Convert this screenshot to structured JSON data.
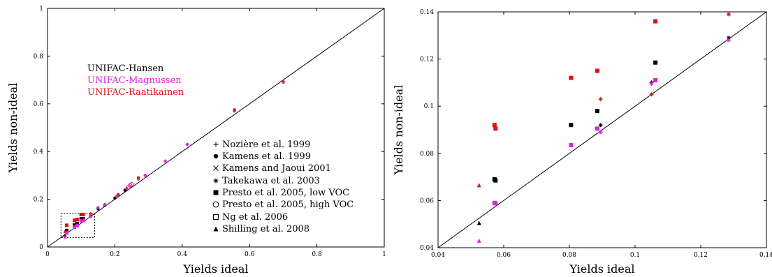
{
  "colors": {
    "hansen": "#000000",
    "magnussen": "#e020e0",
    "raatikainen": "#e01010"
  },
  "chart_data": [
    {
      "type": "scatter",
      "xlabel": "Yields ideal",
      "ylabel": "Yields non-ideal",
      "xlim": [
        0,
        1
      ],
      "ylim": [
        0,
        1
      ],
      "xticks": [
        "0",
        "0.2",
        "0.4",
        "0.6",
        "0.8",
        "1"
      ],
      "yticks": [
        "0",
        "0.2",
        "0.4",
        "0.6",
        "0.8",
        "1"
      ],
      "reference_line": "y = x",
      "zoom_box": {
        "x": [
          0.04,
          0.14
        ],
        "y": [
          0.04,
          0.14
        ]
      },
      "color_legend": [
        {
          "label": "UNIFAC-Hansen",
          "color": "#000000"
        },
        {
          "label": "UNIFAC-Magnussen",
          "color": "#e020e0"
        },
        {
          "label": "UNIFAC-Raatikainen",
          "color": "#e01010"
        }
      ],
      "marker_legend": [
        {
          "label": "Nozière et al. 1999",
          "marker": "plus"
        },
        {
          "label": "Kamens et al. 1999",
          "marker": "dot"
        },
        {
          "label": "Kamens and Jaoui 2001",
          "marker": "cross"
        },
        {
          "label": "Takekawa et al. 2003",
          "marker": "star"
        },
        {
          "label": "Presto et al. 2005, low VOC",
          "marker": "square"
        },
        {
          "label": "Presto et al. 2005, high VOC",
          "marker": "circle"
        },
        {
          "label": "Ng et al. 2006",
          "marker": "open-square"
        },
        {
          "label": "Shilling et al. 2008",
          "marker": "triangle"
        }
      ],
      "points": [
        {
          "x": 0.052,
          "y": 0.05,
          "model": "hansen",
          "marker": "triangle"
        },
        {
          "x": 0.052,
          "y": 0.066,
          "model": "raatikainen",
          "marker": "triangle"
        },
        {
          "x": 0.052,
          "y": 0.043,
          "model": "magnussen",
          "marker": "triangle"
        },
        {
          "x": 0.057,
          "y": 0.069,
          "model": "hansen",
          "marker": "square"
        },
        {
          "x": 0.057,
          "y": 0.091,
          "model": "raatikainen",
          "marker": "square"
        },
        {
          "x": 0.057,
          "y": 0.059,
          "model": "magnussen",
          "marker": "square"
        },
        {
          "x": 0.08,
          "y": 0.092,
          "model": "hansen",
          "marker": "square"
        },
        {
          "x": 0.08,
          "y": 0.112,
          "model": "raatikainen",
          "marker": "square"
        },
        {
          "x": 0.08,
          "y": 0.083,
          "model": "magnussen",
          "marker": "square"
        },
        {
          "x": 0.088,
          "y": 0.098,
          "model": "hansen",
          "marker": "square"
        },
        {
          "x": 0.088,
          "y": 0.115,
          "model": "raatikainen",
          "marker": "square"
        },
        {
          "x": 0.088,
          "y": 0.09,
          "model": "magnussen",
          "marker": "square"
        },
        {
          "x": 0.106,
          "y": 0.118,
          "model": "hansen",
          "marker": "square"
        },
        {
          "x": 0.106,
          "y": 0.136,
          "model": "raatikainen",
          "marker": "square"
        },
        {
          "x": 0.106,
          "y": 0.111,
          "model": "magnussen",
          "marker": "square"
        },
        {
          "x": 0.128,
          "y": 0.129,
          "model": "hansen",
          "marker": "star"
        },
        {
          "x": 0.128,
          "y": 0.139,
          "model": "raatikainen",
          "marker": "star"
        },
        {
          "x": 0.128,
          "y": 0.128,
          "model": "magnussen",
          "marker": "star"
        },
        {
          "x": 0.1,
          "y": 0.118,
          "model": "hansen",
          "marker": "square"
        },
        {
          "x": 0.1,
          "y": 0.136,
          "model": "raatikainen",
          "marker": "square"
        },
        {
          "x": 0.1,
          "y": 0.11,
          "model": "magnussen",
          "marker": "square"
        },
        {
          "x": 0.15,
          "y": 0.16,
          "model": "hansen",
          "marker": "dot"
        },
        {
          "x": 0.15,
          "y": 0.165,
          "model": "magnussen",
          "marker": "dot"
        },
        {
          "x": 0.17,
          "y": 0.175,
          "model": "hansen",
          "marker": "dot"
        },
        {
          "x": 0.17,
          "y": 0.178,
          "model": "magnussen",
          "marker": "dot"
        },
        {
          "x": 0.2,
          "y": 0.205,
          "model": "hansen",
          "marker": "dot"
        },
        {
          "x": 0.205,
          "y": 0.212,
          "model": "magnussen",
          "marker": "dot"
        },
        {
          "x": 0.21,
          "y": 0.22,
          "model": "raatikainen",
          "marker": "dot"
        },
        {
          "x": 0.23,
          "y": 0.238,
          "model": "hansen",
          "marker": "dot"
        },
        {
          "x": 0.235,
          "y": 0.245,
          "model": "magnussen",
          "marker": "dot"
        },
        {
          "x": 0.24,
          "y": 0.25,
          "model": "raatikainen",
          "marker": "circle"
        },
        {
          "x": 0.245,
          "y": 0.258,
          "model": "magnussen",
          "marker": "circle"
        },
        {
          "x": 0.25,
          "y": 0.262,
          "model": "raatikainen",
          "marker": "circle"
        },
        {
          "x": 0.27,
          "y": 0.285,
          "model": "magnussen",
          "marker": "dot"
        },
        {
          "x": 0.27,
          "y": 0.29,
          "model": "raatikainen",
          "marker": "dot"
        },
        {
          "x": 0.29,
          "y": 0.3,
          "model": "magnussen",
          "marker": "dot"
        },
        {
          "x": 0.35,
          "y": 0.36,
          "model": "magnussen",
          "marker": "star"
        },
        {
          "x": 0.415,
          "y": 0.43,
          "model": "magnussen",
          "marker": "dot"
        },
        {
          "x": 0.555,
          "y": 0.57,
          "model": "magnussen",
          "marker": "dot"
        },
        {
          "x": 0.555,
          "y": 0.575,
          "model": "raatikainen",
          "marker": "dot"
        },
        {
          "x": 0.7,
          "y": 0.69,
          "model": "magnussen",
          "marker": "star"
        },
        {
          "x": 0.7,
          "y": 0.695,
          "model": "raatikainen",
          "marker": "plus"
        }
      ]
    },
    {
      "type": "scatter",
      "xlabel": "Yields ideal",
      "ylabel": "Yields non-ideal",
      "xlim": [
        0.04,
        0.14
      ],
      "ylim": [
        0.04,
        0.14
      ],
      "xticks": [
        "0.04",
        "0.06",
        "0.08",
        "0.1",
        "0.12",
        "0.14"
      ],
      "yticks": [
        "0.04",
        "0.06",
        "0.08",
        "0.1",
        "0.12",
        "0.14"
      ],
      "reference_line": "y = x",
      "points": [
        {
          "x": 0.0525,
          "y": 0.0505,
          "model": "hansen",
          "marker": "triangle"
        },
        {
          "x": 0.0525,
          "y": 0.0665,
          "model": "raatikainen",
          "marker": "triangle"
        },
        {
          "x": 0.0525,
          "y": 0.043,
          "model": "magnussen",
          "marker": "triangle"
        },
        {
          "x": 0.0572,
          "y": 0.069,
          "model": "hansen",
          "marker": "square"
        },
        {
          "x": 0.0575,
          "y": 0.0685,
          "model": "hansen",
          "marker": "square"
        },
        {
          "x": 0.0572,
          "y": 0.092,
          "model": "raatikainen",
          "marker": "square"
        },
        {
          "x": 0.0575,
          "y": 0.0905,
          "model": "raatikainen",
          "marker": "square"
        },
        {
          "x": 0.0572,
          "y": 0.059,
          "model": "magnussen",
          "marker": "square"
        },
        {
          "x": 0.0575,
          "y": 0.0588,
          "model": "magnussen",
          "marker": "square"
        },
        {
          "x": 0.0805,
          "y": 0.092,
          "model": "hansen",
          "marker": "square"
        },
        {
          "x": 0.0805,
          "y": 0.112,
          "model": "raatikainen",
          "marker": "square"
        },
        {
          "x": 0.0805,
          "y": 0.0835,
          "model": "magnussen",
          "marker": "square"
        },
        {
          "x": 0.0885,
          "y": 0.098,
          "model": "hansen",
          "marker": "square"
        },
        {
          "x": 0.0885,
          "y": 0.115,
          "model": "raatikainen",
          "marker": "square"
        },
        {
          "x": 0.0885,
          "y": 0.0905,
          "model": "magnussen",
          "marker": "square"
        },
        {
          "x": 0.0895,
          "y": 0.092,
          "model": "hansen",
          "marker": "star"
        },
        {
          "x": 0.0895,
          "y": 0.103,
          "model": "raatikainen",
          "marker": "star"
        },
        {
          "x": 0.0895,
          "y": 0.089,
          "model": "magnussen",
          "marker": "star"
        },
        {
          "x": 0.105,
          "y": 0.11,
          "model": "hansen",
          "marker": "star"
        },
        {
          "x": 0.105,
          "y": 0.105,
          "model": "raatikainen",
          "marker": "star"
        },
        {
          "x": 0.105,
          "y": 0.1095,
          "model": "magnussen",
          "marker": "star"
        },
        {
          "x": 0.1062,
          "y": 0.1185,
          "model": "hansen",
          "marker": "square"
        },
        {
          "x": 0.1062,
          "y": 0.136,
          "model": "raatikainen",
          "marker": "square"
        },
        {
          "x": 0.1062,
          "y": 0.111,
          "model": "magnussen",
          "marker": "square"
        },
        {
          "x": 0.1285,
          "y": 0.129,
          "model": "hansen",
          "marker": "star"
        },
        {
          "x": 0.1285,
          "y": 0.139,
          "model": "raatikainen",
          "marker": "star"
        },
        {
          "x": 0.1285,
          "y": 0.128,
          "model": "magnussen",
          "marker": "star"
        }
      ]
    }
  ]
}
